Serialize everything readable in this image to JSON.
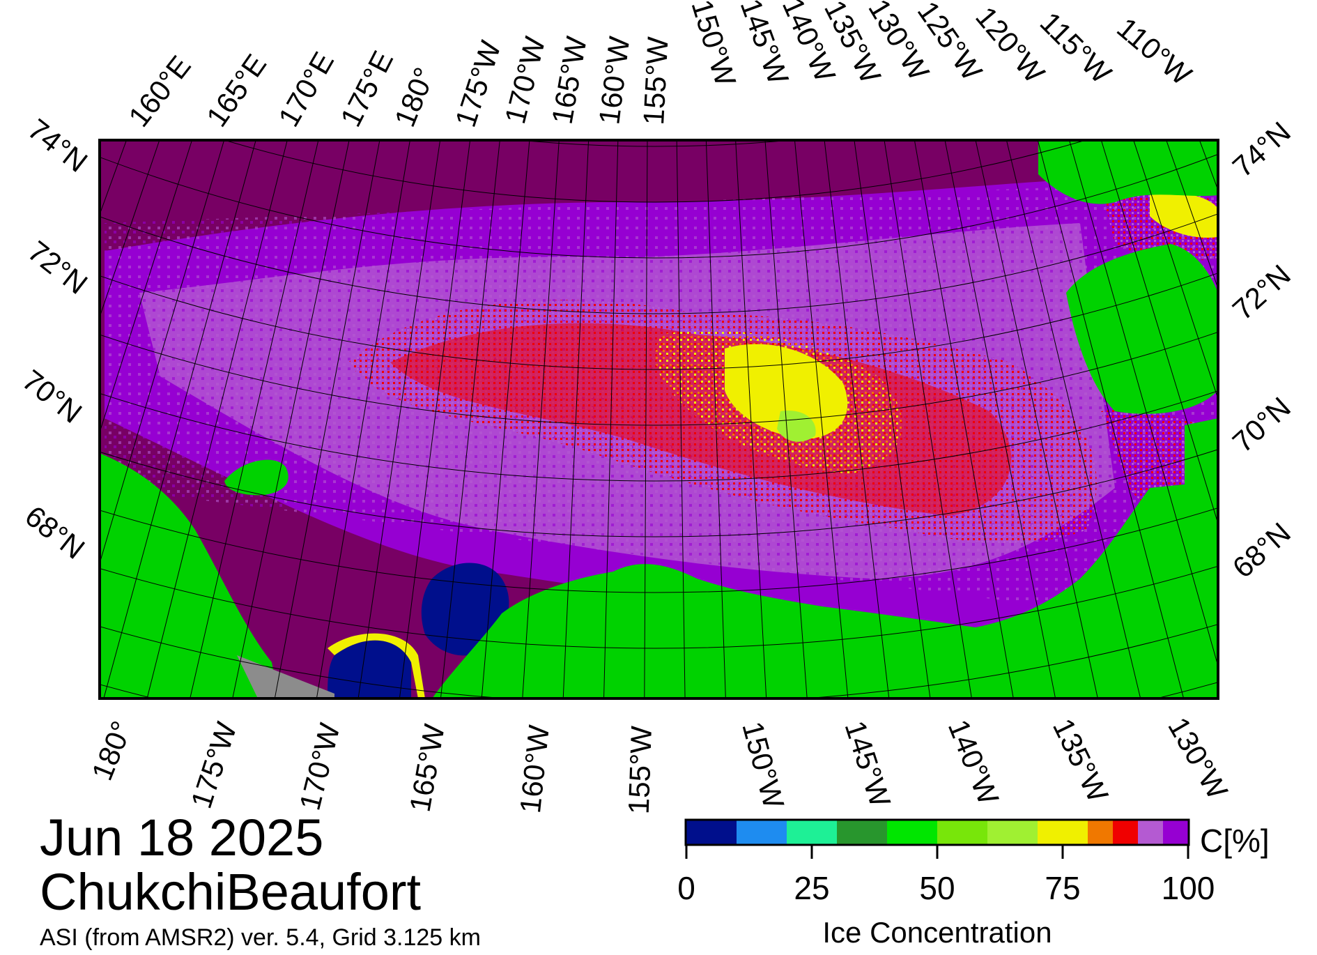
{
  "date": "Jun 18 2025",
  "region": "ChukchiBeaufort",
  "source_line": "ASI (from AMSR2) ver. 5.4,  Grid 3.125 km",
  "colorbar": {
    "title": "Ice Concentration",
    "unit": "C[%]",
    "ticks": [
      "0",
      "25",
      "50",
      "75",
      "100"
    ],
    "bins": [
      {
        "from": 0,
        "to": 10,
        "color": "#000f8c"
      },
      {
        "from": 10,
        "to": 20,
        "color": "#1e8cf0"
      },
      {
        "from": 20,
        "to": 30,
        "color": "#1ef096"
      },
      {
        "from": 30,
        "to": 40,
        "color": "#28962d"
      },
      {
        "from": 40,
        "to": 50,
        "color": "#00e600"
      },
      {
        "from": 50,
        "to": 60,
        "color": "#78e60a"
      },
      {
        "from": 60,
        "to": 70,
        "color": "#a0f032"
      },
      {
        "from": 70,
        "to": 80,
        "color": "#f0f000"
      },
      {
        "from": 80,
        "to": 85,
        "color": "#f07800"
      },
      {
        "from": 85,
        "to": 90,
        "color": "#f00000"
      },
      {
        "from": 90,
        "to": 95,
        "color": "#b45ad2"
      },
      {
        "from": 95,
        "to": 100,
        "color": "#9600d2"
      }
    ]
  },
  "colors": {
    "land": "#00d200",
    "no_data": "#8c8c8c",
    "open_water": "#000f8c",
    "pack_ice": "#780064",
    "ice_95": "#9600d2",
    "ice_90": "#b45ad2",
    "ice_85": "#f00000",
    "ice_80": "#f07800",
    "ice_75": "#f0f000",
    "ice_70": "#a0f032"
  },
  "map": {
    "left_labels": [
      "74°N",
      "72°N",
      "70°N",
      "68°N"
    ],
    "right_labels": [
      "74°N",
      "72°N",
      "70°N",
      "68°N"
    ],
    "top_labels": [
      "160°E",
      "165°E",
      "170°E",
      "175°E",
      "180°",
      "175°W",
      "170°W",
      "165°W",
      "160°W",
      "155°W",
      "150°W",
      "145°W",
      "140°W",
      "135°W",
      "130°W",
      "125°W",
      "120°W",
      "115°W",
      "110°W"
    ],
    "bottom_labels": [
      "180°",
      "175°W",
      "170°W",
      "165°W",
      "160°W",
      "155°W",
      "150°W",
      "145°W",
      "140°W",
      "135°W",
      "130°W"
    ]
  }
}
